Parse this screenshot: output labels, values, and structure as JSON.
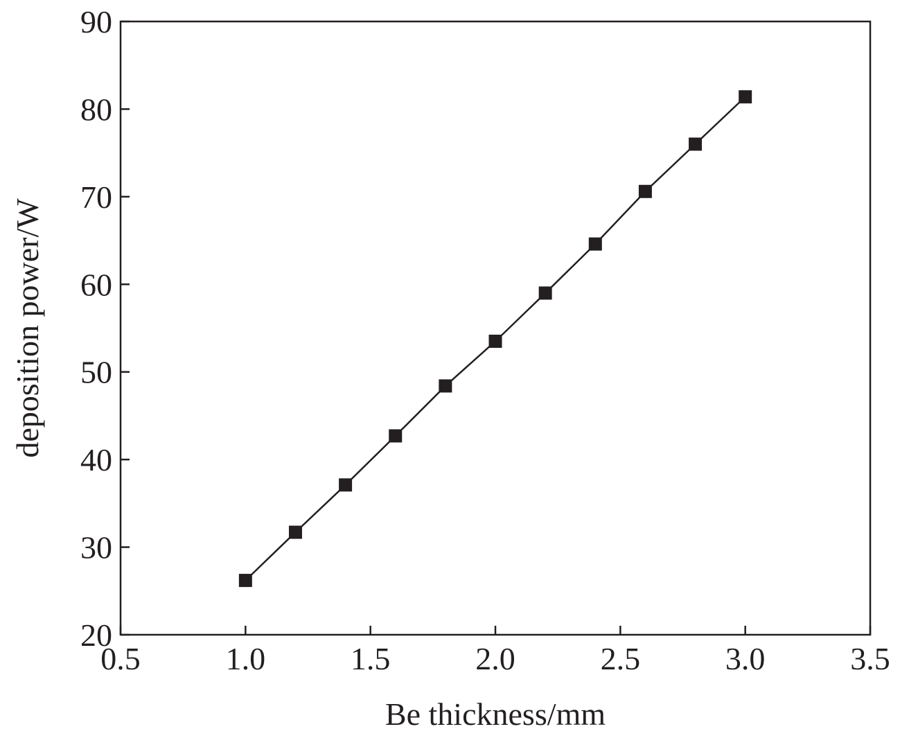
{
  "chart_data": {
    "type": "line",
    "title": "",
    "xlabel": "Be thickness/mm",
    "ylabel": "deposition power/W",
    "xlim": [
      0.5,
      3.5
    ],
    "ylim": [
      20,
      90
    ],
    "xticks": [
      "0.5",
      "1.0",
      "1.5",
      "2.0",
      "2.5",
      "3.0",
      "3.5"
    ],
    "yticks": [
      "20",
      "30",
      "40",
      "50",
      "60",
      "70",
      "80",
      "90"
    ],
    "grid": false,
    "legend": "none",
    "marker": "square",
    "colors": {
      "series": "#231f20",
      "axis": "#231f20",
      "background": "#ffffff"
    },
    "series": [
      {
        "x": [
          1.0,
          1.2,
          1.4,
          1.6,
          1.8,
          2.0,
          2.2,
          2.4,
          2.6,
          2.8,
          3.0
        ],
        "y": [
          26.2,
          31.7,
          37.1,
          42.7,
          48.4,
          53.5,
          59.0,
          64.6,
          70.6,
          76.0,
          81.4
        ]
      }
    ]
  }
}
